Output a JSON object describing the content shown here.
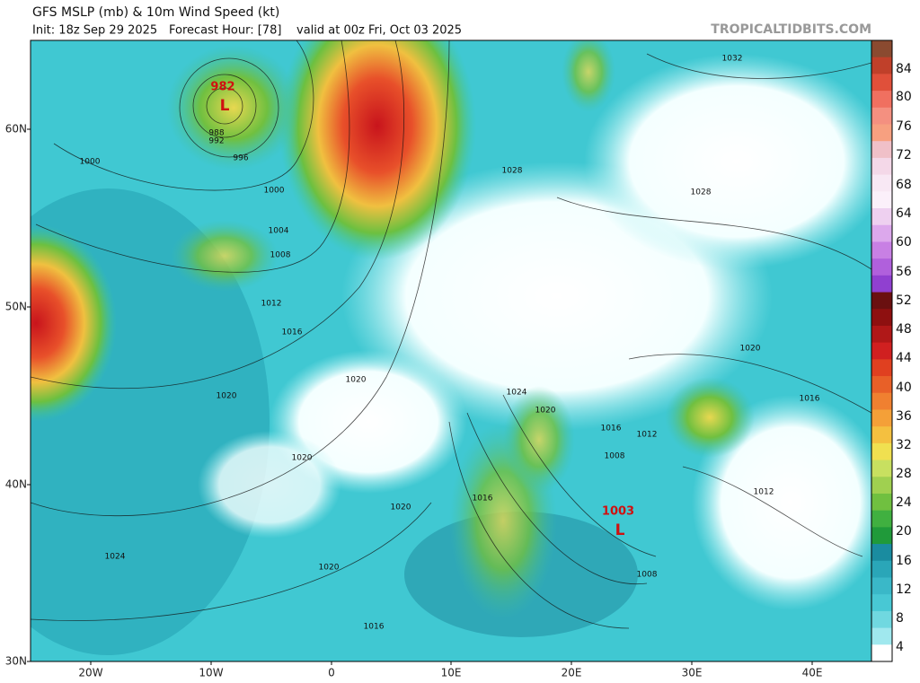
{
  "header": {
    "title": "GFS MSLP (mb) & 10m Wind Speed (kt)",
    "init": "Init: 18z Sep 29 2025",
    "forecast_hour": "Forecast Hour: [78]",
    "valid": "valid at 00z Fri, Oct 03 2025",
    "watermark": "TROPICALTIDBITS.COM"
  },
  "map": {
    "lat_labels": [
      "60N",
      "50N",
      "40N",
      "30N"
    ],
    "lon_labels": [
      "20W",
      "10W",
      "0",
      "10E",
      "20E",
      "30E",
      "40E"
    ],
    "lows": [
      {
        "pressure": "982",
        "symbol": "L"
      },
      {
        "pressure": "1003",
        "symbol": "L"
      }
    ],
    "isobar_labels": [
      "1032",
      "988",
      "992",
      "996",
      "1000",
      "1000",
      "1028",
      "1028",
      "1004",
      "1008",
      "1012",
      "1016",
      "1020",
      "1020",
      "1020",
      "1016",
      "1024",
      "1020",
      "1016",
      "1012",
      "1008",
      "1020",
      "1016",
      "1012",
      "1020",
      "1024",
      "1020",
      "1008",
      "1016"
    ]
  },
  "colorbar": {
    "labels": [
      "84",
      "80",
      "76",
      "72",
      "68",
      "64",
      "60",
      "56",
      "52",
      "48",
      "44",
      "40",
      "36",
      "32",
      "28",
      "24",
      "20",
      "16",
      "12",
      "8",
      "4"
    ]
  }
}
